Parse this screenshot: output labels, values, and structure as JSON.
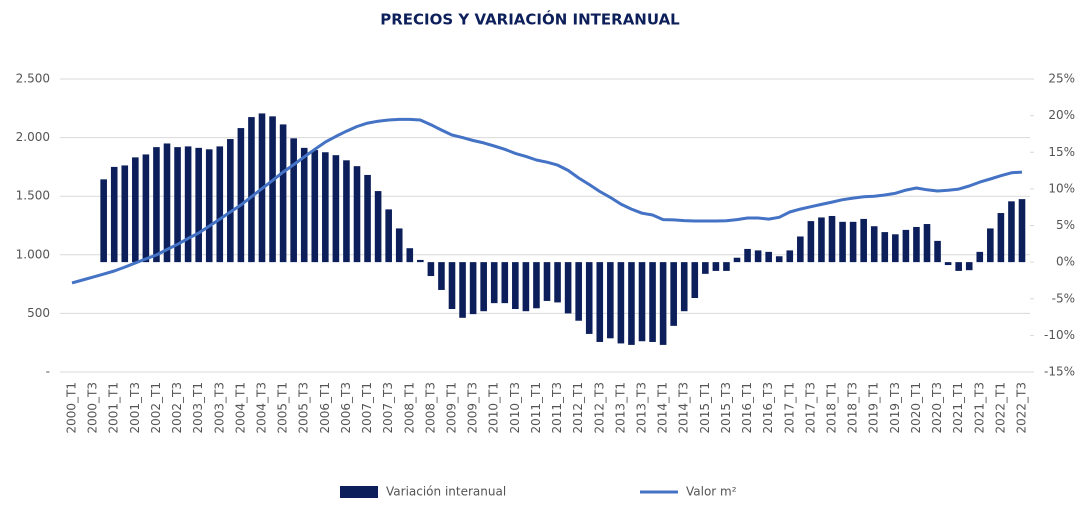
{
  "chart_data": {
    "type": "bar_line",
    "title": "PRECIOS Y VARIACIÓN INTERANUAL",
    "categories": [
      "2000_T1",
      null,
      "2000_T3",
      null,
      "2001_T1",
      null,
      "2001_T3",
      null,
      "2002_T1",
      null,
      "2002_T3",
      null,
      "2003_T1",
      null,
      "2003_T3",
      null,
      "2004_T1",
      null,
      "2004_T3",
      null,
      "2005_T1",
      null,
      "2005_T3",
      null,
      "2006_T1",
      null,
      "2006_T3",
      null,
      "2007_T1",
      null,
      "2007_T3",
      null,
      "2008_T1",
      null,
      "2008_T3",
      null,
      "2009_T1",
      null,
      "2009_T3",
      null,
      "2010_T1",
      null,
      "2010_T3",
      null,
      "2011_T1",
      null,
      "2011_T3",
      null,
      "2012_T1",
      null,
      "2012_T3",
      null,
      "2013_T1",
      null,
      "2013_T3",
      null,
      "2014_T1",
      null,
      "2014_T3",
      null,
      "2015_T1",
      null,
      "2015_T3",
      null,
      "2016_T1",
      null,
      "2016_T3",
      null,
      "2017_T1",
      null,
      "2017_T3",
      null,
      "2018_T1",
      null,
      "2018_T3",
      null,
      "2019_T1",
      null,
      "2019_T3",
      null,
      "2020_T1",
      null,
      "2020_T3",
      null,
      "2021_T1",
      null,
      "2021_T3",
      null,
      "2022_T1",
      null,
      "2022_T3"
    ],
    "series": [
      {
        "name": "Variación interanual",
        "kind": "bar",
        "axis": "y2",
        "color": "#0c1f5a",
        "values": [
          null,
          null,
          null,
          11.3,
          13.0,
          13.2,
          14.3,
          14.7,
          15.7,
          16.2,
          15.7,
          15.8,
          15.6,
          15.4,
          15.8,
          16.8,
          18.3,
          19.8,
          20.3,
          19.9,
          18.8,
          16.9,
          15.6,
          15.3,
          15.0,
          14.6,
          13.9,
          13.1,
          11.9,
          9.7,
          7.2,
          4.6,
          1.9,
          0.3,
          -1.9,
          -3.8,
          -6.4,
          -7.6,
          -7.1,
          -6.7,
          -5.6,
          -5.6,
          -6.4,
          -6.7,
          -6.3,
          -5.3,
          -5.5,
          -7.0,
          -8.0,
          -9.8,
          -10.9,
          -10.4,
          -11.1,
          -11.3,
          -10.8,
          -10.9,
          -11.3,
          -8.7,
          -6.7,
          -4.9,
          -1.6,
          -1.2,
          -1.2,
          0.6,
          1.8,
          1.6,
          1.4,
          0.8,
          1.6,
          3.5,
          5.6,
          6.1,
          6.3,
          5.5,
          5.5,
          5.9,
          4.9,
          4.1,
          3.8,
          4.4,
          4.8,
          5.2,
          2.9,
          -0.4,
          -1.2,
          -1.1,
          1.4,
          4.6,
          6.7,
          8.3,
          8.6
        ]
      },
      {
        "name": "Valor m²",
        "kind": "line",
        "color": "#4472c4",
        "values": [
          760,
          785,
          810,
          835,
          862,
          895,
          930,
          965,
          998,
          1045,
          1090,
          1140,
          1186,
          1245,
          1305,
          1365,
          1425,
          1495,
          1565,
          1635,
          1706,
          1770,
          1835,
          1900,
          1962,
          2010,
          2055,
          2095,
          2124,
          2140,
          2150,
          2155,
          2155,
          2150,
          2110,
          2065,
          2022,
          2000,
          1975,
          1955,
          1928,
          1900,
          1865,
          1840,
          1809,
          1790,
          1765,
          1720,
          1655,
          1600,
          1540,
          1490,
          1433,
          1390,
          1355,
          1340,
          1300,
          1298,
          1292,
          1288,
          1288,
          1288,
          1290,
          1300,
          1314,
          1314,
          1305,
          1320,
          1365,
          1390,
          1410,
          1430,
          1450,
          1470,
          1484,
          1495,
          1500,
          1510,
          1525,
          1552,
          1570,
          1555,
          1544,
          1550,
          1561,
          1587,
          1620,
          1647,
          1675,
          1700,
          1706
        ]
      }
    ],
    "ylim": [
      0,
      2500
    ],
    "yticks": [
      {
        "value": 0,
        "label": "-"
      },
      500,
      {
        "value": 1000,
        "label": "1.000"
      },
      {
        "value": 1500,
        "label": "1.500"
      },
      {
        "value": 2000,
        "label": "2.000"
      },
      {
        "value": 2500,
        "label": "2.500"
      }
    ],
    "y2lim": [
      -15,
      25
    ],
    "y2ticks": [
      {
        "value": -15,
        "label": "-15%"
      },
      {
        "value": -10,
        "label": "-10%"
      },
      {
        "value": -5,
        "label": "-5%"
      },
      {
        "value": 0,
        "label": "0%"
      },
      {
        "value": 5,
        "label": "5%"
      },
      {
        "value": 10,
        "label": "10%"
      },
      {
        "value": 15,
        "label": "15%"
      },
      {
        "value": 20,
        "label": "20%"
      },
      {
        "value": 25,
        "label": "25%"
      }
    ],
    "grid": true
  }
}
